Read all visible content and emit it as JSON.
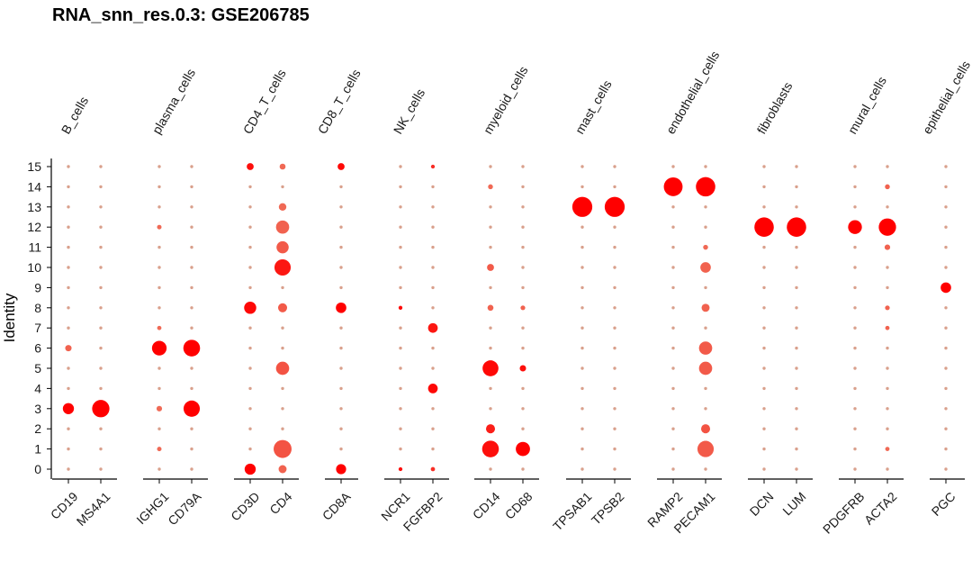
{
  "chart_data": {
    "type": "dotplot",
    "title": "RNA_snn_res.0.3: GSE206785",
    "ylabel": "Identity",
    "y_categories": [
      "0",
      "1",
      "2",
      "3",
      "4",
      "5",
      "6",
      "7",
      "8",
      "9",
      "10",
      "11",
      "12",
      "13",
      "14",
      "15"
    ],
    "groups": [
      {
        "name": "B_cells",
        "genes": [
          "CD19",
          "MS4A1"
        ]
      },
      {
        "name": "plasma_cells",
        "genes": [
          "IGHG1",
          "CD79A"
        ]
      },
      {
        "name": "CD4_T_cells",
        "genes": [
          "CD3D",
          "CD4"
        ]
      },
      {
        "name": "CD8_T_cells",
        "genes": [
          "CD8A"
        ]
      },
      {
        "name": "NK_cells",
        "genes": [
          "NCR1",
          "FGFBP2"
        ]
      },
      {
        "name": "myeloid_cells",
        "genes": [
          "CD14",
          "CD68"
        ]
      },
      {
        "name": "mast_cells",
        "genes": [
          "TPSAB1",
          "TPSB2"
        ]
      },
      {
        "name": "endothelial_cells",
        "genes": [
          "RAMP2",
          "PECAM1"
        ]
      },
      {
        "name": "fibroblasts",
        "genes": [
          "DCN",
          "LUM"
        ]
      },
      {
        "name": "mural_cells",
        "genes": [
          "PDGFRB",
          "ACTA2"
        ]
      },
      {
        "name": "epithelial_cells",
        "genes": [
          "PGC"
        ]
      }
    ],
    "genes": [
      "CD19",
      "MS4A1",
      "IGHG1",
      "CD79A",
      "CD3D",
      "CD4",
      "CD8A",
      "NCR1",
      "FGFBP2",
      "CD14",
      "CD68",
      "TPSAB1",
      "TPSB2",
      "RAMP2",
      "PECAM1",
      "DCN",
      "LUM",
      "PDGFRB",
      "ACTA2",
      "PGC"
    ],
    "note_encoding": "size = percent expressed (0-1), expr = scaled average expression (0 low/light, 1 high/red)",
    "points": [
      {
        "gene": "CD19",
        "id": "3",
        "size": 0.45,
        "expr": 1.0
      },
      {
        "gene": "CD19",
        "id": "6",
        "size": 0.22,
        "expr": 0.35
      },
      {
        "gene": "MS4A1",
        "id": "3",
        "size": 0.75,
        "expr": 1.0
      },
      {
        "gene": "IGHG1",
        "id": "6",
        "size": 0.62,
        "expr": 1.0
      },
      {
        "gene": "IGHG1",
        "id": "3",
        "size": 0.18,
        "expr": 0.3
      },
      {
        "gene": "IGHG1",
        "id": "12",
        "size": 0.13,
        "expr": 0.3
      },
      {
        "gene": "IGHG1",
        "id": "1",
        "size": 0.13,
        "expr": 0.3
      },
      {
        "gene": "IGHG1",
        "id": "7",
        "size": 0.12,
        "expr": 0.3
      },
      {
        "gene": "CD79A",
        "id": "6",
        "size": 0.72,
        "expr": 1.0
      },
      {
        "gene": "CD79A",
        "id": "3",
        "size": 0.7,
        "expr": 1.0
      },
      {
        "gene": "CD3D",
        "id": "0",
        "size": 0.45,
        "expr": 1.0
      },
      {
        "gene": "CD3D",
        "id": "8",
        "size": 0.5,
        "expr": 0.95
      },
      {
        "gene": "CD3D",
        "id": "15",
        "size": 0.25,
        "expr": 0.9
      },
      {
        "gene": "CD4",
        "id": "1",
        "size": 0.78,
        "expr": 0.45
      },
      {
        "gene": "CD4",
        "id": "10",
        "size": 0.7,
        "expr": 0.85
      },
      {
        "gene": "CD4",
        "id": "5",
        "size": 0.55,
        "expr": 0.45
      },
      {
        "gene": "CD4",
        "id": "12",
        "size": 0.55,
        "expr": 0.35
      },
      {
        "gene": "CD4",
        "id": "11",
        "size": 0.5,
        "expr": 0.4
      },
      {
        "gene": "CD4",
        "id": "13",
        "size": 0.28,
        "expr": 0.3
      },
      {
        "gene": "CD4",
        "id": "8",
        "size": 0.35,
        "expr": 0.4
      },
      {
        "gene": "CD4",
        "id": "0",
        "size": 0.3,
        "expr": 0.35
      },
      {
        "gene": "CD4",
        "id": "15",
        "size": 0.2,
        "expr": 0.3
      },
      {
        "gene": "CD8A",
        "id": "0",
        "size": 0.4,
        "expr": 1.0
      },
      {
        "gene": "CD8A",
        "id": "8",
        "size": 0.42,
        "expr": 1.0
      },
      {
        "gene": "CD8A",
        "id": "15",
        "size": 0.25,
        "expr": 0.95
      },
      {
        "gene": "NCR1",
        "id": "8",
        "size": 0.1,
        "expr": 0.95
      },
      {
        "gene": "NCR1",
        "id": "0",
        "size": 0.1,
        "expr": 0.9
      },
      {
        "gene": "FGFBP2",
        "id": "7",
        "size": 0.38,
        "expr": 0.85
      },
      {
        "gene": "FGFBP2",
        "id": "4",
        "size": 0.38,
        "expr": 0.95
      },
      {
        "gene": "FGFBP2",
        "id": "15",
        "size": 0.1,
        "expr": 0.7
      },
      {
        "gene": "FGFBP2",
        "id": "0",
        "size": 0.12,
        "expr": 0.7
      },
      {
        "gene": "CD14",
        "id": "1",
        "size": 0.72,
        "expr": 0.9
      },
      {
        "gene": "CD14",
        "id": "5",
        "size": 0.68,
        "expr": 0.95
      },
      {
        "gene": "CD14",
        "id": "2",
        "size": 0.35,
        "expr": 0.8
      },
      {
        "gene": "CD14",
        "id": "10",
        "size": 0.25,
        "expr": 0.4
      },
      {
        "gene": "CD14",
        "id": "8",
        "size": 0.2,
        "expr": 0.35
      },
      {
        "gene": "CD14",
        "id": "14",
        "size": 0.15,
        "expr": 0.3
      },
      {
        "gene": "CD68",
        "id": "1",
        "size": 0.6,
        "expr": 1.0
      },
      {
        "gene": "CD68",
        "id": "5",
        "size": 0.22,
        "expr": 0.9
      },
      {
        "gene": "CD68",
        "id": "8",
        "size": 0.14,
        "expr": 0.35
      },
      {
        "gene": "TPSAB1",
        "id": "13",
        "size": 0.88,
        "expr": 1.0
      },
      {
        "gene": "TPSB2",
        "id": "13",
        "size": 0.88,
        "expr": 1.0
      },
      {
        "gene": "RAMP2",
        "id": "14",
        "size": 0.82,
        "expr": 1.0
      },
      {
        "gene": "PECAM1",
        "id": "14",
        "size": 0.85,
        "expr": 1.0
      },
      {
        "gene": "PECAM1",
        "id": "1",
        "size": 0.7,
        "expr": 0.4
      },
      {
        "gene": "PECAM1",
        "id": "6",
        "size": 0.55,
        "expr": 0.4
      },
      {
        "gene": "PECAM1",
        "id": "5",
        "size": 0.55,
        "expr": 0.4
      },
      {
        "gene": "PECAM1",
        "id": "10",
        "size": 0.42,
        "expr": 0.35
      },
      {
        "gene": "PECAM1",
        "id": "2",
        "size": 0.35,
        "expr": 0.45
      },
      {
        "gene": "PECAM1",
        "id": "8",
        "size": 0.3,
        "expr": 0.35
      },
      {
        "gene": "PECAM1",
        "id": "11",
        "size": 0.15,
        "expr": 0.3
      },
      {
        "gene": "DCN",
        "id": "12",
        "size": 0.85,
        "expr": 1.0
      },
      {
        "gene": "LUM",
        "id": "12",
        "size": 0.85,
        "expr": 1.0
      },
      {
        "gene": "PDGFRB",
        "id": "12",
        "size": 0.58,
        "expr": 1.0
      },
      {
        "gene": "ACTA2",
        "id": "12",
        "size": 0.75,
        "expr": 1.0
      },
      {
        "gene": "ACTA2",
        "id": "14",
        "size": 0.15,
        "expr": 0.35
      },
      {
        "gene": "ACTA2",
        "id": "11",
        "size": 0.18,
        "expr": 0.35
      },
      {
        "gene": "ACTA2",
        "id": "8",
        "size": 0.14,
        "expr": 0.35
      },
      {
        "gene": "ACTA2",
        "id": "7",
        "size": 0.12,
        "expr": 0.35
      },
      {
        "gene": "ACTA2",
        "id": "1",
        "size": 0.12,
        "expr": 0.3
      },
      {
        "gene": "PGC",
        "id": "9",
        "size": 0.42,
        "expr": 1.0
      }
    ],
    "background_dot_size": 0.06,
    "colors": {
      "high": "#ff0000",
      "low": "#e9967a",
      "tiny": "#d9a08c",
      "axis": "#000000"
    },
    "legend": "none",
    "grid": false
  }
}
